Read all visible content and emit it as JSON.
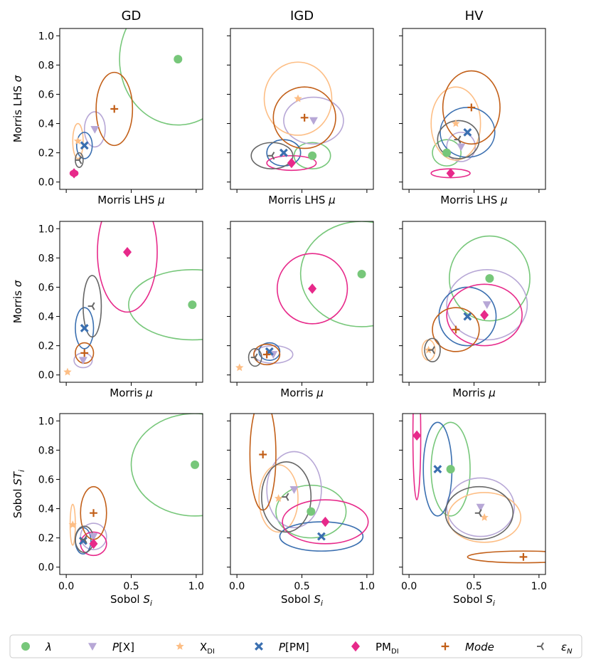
{
  "chart_data": {
    "type": "scatter",
    "description_markers": "each marker = mean; ellipse = spread (rx,ry in data units)",
    "columns": [
      "GD",
      "IGD",
      "HV"
    ],
    "rows": [
      {
        "ylabel": "Morris LHS  σ",
        "xlabel": "Morris LHS  μ"
      },
      {
        "ylabel": "Morris  σ",
        "xlabel": "Morris  μ"
      },
      {
        "ylabel": "Sobol  STi",
        "xlabel": "Sobol  Si"
      }
    ],
    "xlim": [
      -0.05,
      1.05
    ],
    "ylim": [
      -0.05,
      1.05
    ],
    "x_ticks": [
      "0.0",
      "0.5",
      "1.0"
    ],
    "y_ticks": [
      "0.0",
      "0.2",
      "0.4",
      "0.6",
      "0.8",
      "1.0"
    ],
    "legend": [
      {
        "key": "lambda",
        "label": "λ",
        "color": "#77c77a",
        "marker": "circle"
      },
      {
        "key": "px",
        "label": "P[X]",
        "color": "#b7a7d6",
        "marker": "triangle-down"
      },
      {
        "key": "xdi",
        "label": "X",
        "sub": "DI",
        "color": "#fdbe85",
        "marker": "star"
      },
      {
        "key": "ppm",
        "label": "P[PM]",
        "color": "#3a6fb0",
        "marker": "x"
      },
      {
        "key": "pmdi",
        "label": "PM",
        "sub": "DI",
        "color": "#e7298a",
        "marker": "diamond"
      },
      {
        "key": "mode",
        "label": "Mode",
        "color": "#c25f18",
        "marker": "plus"
      },
      {
        "key": "eps",
        "label": "ε",
        "sub": "N",
        "color": "#666666",
        "marker": "tri-left"
      }
    ],
    "panels": [
      [
        {
          "lambda": [
            0.86,
            0.84,
            0.45,
            0.45
          ],
          "px": [
            0.22,
            0.36,
            0.08,
            0.12
          ],
          "xdi": [
            0.09,
            0.28,
            0.04,
            0.12
          ],
          "ppm": [
            0.14,
            0.25,
            0.06,
            0.09
          ],
          "pmdi": [
            0.06,
            0.06,
            0.03,
            0.02
          ],
          "mode": [
            0.37,
            0.5,
            0.14,
            0.25
          ],
          "eps": [
            0.1,
            0.15,
            0.03,
            0.05
          ]
        },
        {
          "lambda": [
            0.58,
            0.18,
            0.14,
            0.09
          ],
          "px": [
            0.59,
            0.42,
            0.23,
            0.16
          ],
          "xdi": [
            0.47,
            0.57,
            0.26,
            0.25
          ],
          "ppm": [
            0.36,
            0.2,
            0.13,
            0.09
          ],
          "pmdi": [
            0.42,
            0.13,
            0.19,
            0.05
          ],
          "mode": [
            0.52,
            0.44,
            0.24,
            0.21
          ],
          "eps": [
            0.27,
            0.18,
            0.16,
            0.09
          ]
        },
        {
          "lambda": [
            0.29,
            0.2,
            0.11,
            0.09
          ],
          "px": [
            0.4,
            0.24,
            0.11,
            0.1
          ],
          "xdi": [
            0.36,
            0.4,
            0.19,
            0.25
          ],
          "ppm": [
            0.45,
            0.34,
            0.21,
            0.17
          ],
          "pmdi": [
            0.32,
            0.06,
            0.15,
            0.03
          ],
          "mode": [
            0.48,
            0.51,
            0.22,
            0.25
          ],
          "eps": [
            0.38,
            0.29,
            0.16,
            0.13
          ]
        }
      ],
      [
        {
          "lambda": [
            0.97,
            0.48,
            0.49,
            0.24
          ],
          "px": [
            0.13,
            0.1,
            0.07,
            0.05
          ],
          "xdi": [
            0.01,
            0.02,
            0.01,
            0.01
          ],
          "ppm": [
            0.14,
            0.32,
            0.07,
            0.14
          ],
          "pmdi": [
            0.47,
            0.84,
            0.23,
            0.41
          ],
          "mode": [
            0.14,
            0.15,
            0.07,
            0.07
          ],
          "eps": [
            0.2,
            0.47,
            0.07,
            0.21
          ]
        },
        {
          "lambda": [
            0.96,
            0.69,
            0.47,
            0.36
          ],
          "px": [
            0.28,
            0.14,
            0.15,
            0.06
          ],
          "xdi": [
            0.02,
            0.05,
            0.01,
            0.01
          ],
          "ppm": [
            0.25,
            0.16,
            0.08,
            0.06
          ],
          "pmdi": [
            0.58,
            0.59,
            0.27,
            0.24
          ],
          "mode": [
            0.23,
            0.14,
            0.1,
            0.07
          ],
          "eps": [
            0.14,
            0.12,
            0.05,
            0.06
          ]
        },
        {
          "lambda": [
            0.62,
            0.66,
            0.31,
            0.29
          ],
          "px": [
            0.6,
            0.48,
            0.31,
            0.24
          ],
          "xdi": [
            0.15,
            0.17,
            0.05,
            0.07
          ],
          "ppm": [
            0.45,
            0.4,
            0.22,
            0.2
          ],
          "pmdi": [
            0.58,
            0.41,
            0.29,
            0.21
          ],
          "mode": [
            0.36,
            0.31,
            0.18,
            0.15
          ],
          "eps": [
            0.18,
            0.17,
            0.06,
            0.08
          ]
        }
      ],
      [
        {
          "lambda": [
            0.99,
            0.7,
            0.49,
            0.35
          ],
          "px": [
            0.21,
            0.21,
            0.1,
            0.09
          ],
          "xdi": [
            0.05,
            0.29,
            0.02,
            0.14
          ],
          "ppm": [
            0.13,
            0.18,
            0.06,
            0.09
          ],
          "pmdi": [
            0.21,
            0.16,
            0.1,
            0.08
          ],
          "mode": [
            0.21,
            0.37,
            0.1,
            0.18
          ],
          "eps": [
            0.14,
            0.19,
            0.07,
            0.09
          ]
        },
        {
          "lambda": [
            0.57,
            0.38,
            0.27,
            0.18
          ],
          "px": [
            0.44,
            0.53,
            0.21,
            0.26
          ],
          "xdi": [
            0.32,
            0.47,
            0.15,
            0.23
          ],
          "ppm": [
            0.65,
            0.21,
            0.32,
            0.1
          ],
          "pmdi": [
            0.68,
            0.31,
            0.33,
            0.15
          ],
          "mode": [
            0.2,
            0.77,
            0.1,
            0.38
          ],
          "eps": [
            0.38,
            0.48,
            0.19,
            0.24
          ]
        },
        {
          "lambda": [
            0.32,
            0.67,
            0.15,
            0.32
          ],
          "px": [
            0.55,
            0.41,
            0.26,
            0.2
          ],
          "xdi": [
            0.58,
            0.34,
            0.28,
            0.17
          ],
          "ppm": [
            0.22,
            0.67,
            0.11,
            0.32
          ],
          "pmdi": [
            0.06,
            0.9,
            0.03,
            0.44
          ],
          "mode": [
            0.88,
            0.07,
            0.43,
            0.04
          ],
          "eps": [
            0.54,
            0.37,
            0.26,
            0.18
          ]
        }
      ]
    ]
  }
}
